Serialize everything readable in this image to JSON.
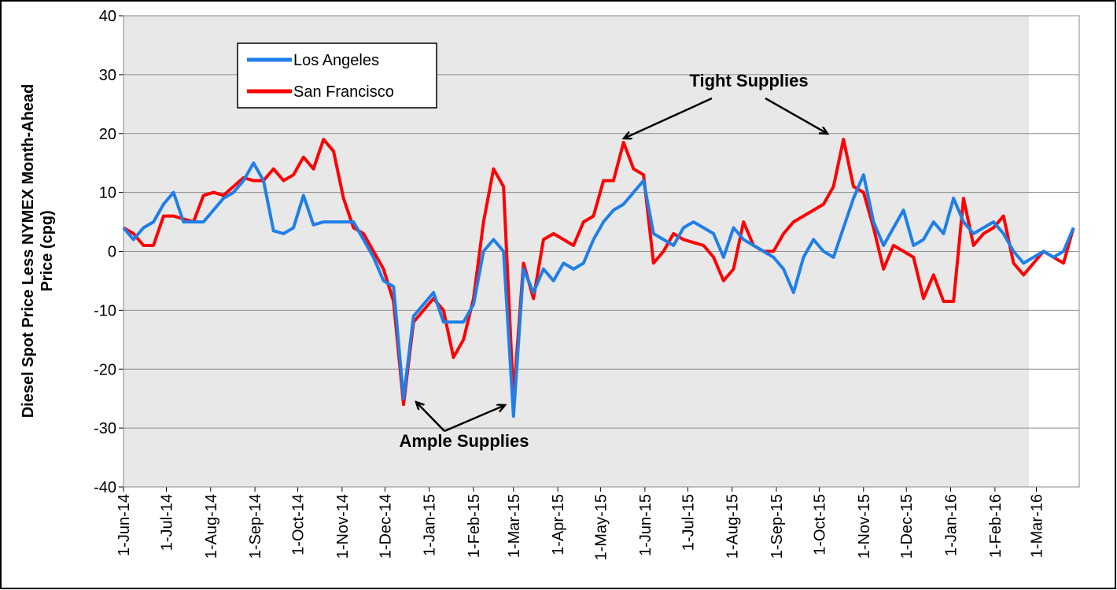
{
  "chart_data": {
    "type": "line",
    "ylabel": [
      "Diesel Spot Price Less NYMEX Month-Ahead",
      "Price (cpg)"
    ],
    "annotations": [
      "Tight Supplies",
      "Ample Supplies"
    ],
    "x": [
      "2014-06-01",
      "2014-06-08",
      "2014-06-15",
      "2014-06-22",
      "2014-06-29",
      "2014-07-06",
      "2014-07-13",
      "2014-07-20",
      "2014-07-27",
      "2014-08-03",
      "2014-08-10",
      "2014-08-17",
      "2014-08-24",
      "2014-08-31",
      "2014-09-07",
      "2014-09-14",
      "2014-09-21",
      "2014-09-28",
      "2014-10-05",
      "2014-10-12",
      "2014-10-19",
      "2014-10-26",
      "2014-11-02",
      "2014-11-09",
      "2014-11-16",
      "2014-11-23",
      "2014-11-30",
      "2014-12-07",
      "2014-12-14",
      "2014-12-21",
      "2014-12-28",
      "2015-01-04",
      "2015-01-11",
      "2015-01-18",
      "2015-01-25",
      "2015-02-01",
      "2015-02-08",
      "2015-02-15",
      "2015-02-22",
      "2015-03-01",
      "2015-03-08",
      "2015-03-15",
      "2015-03-22",
      "2015-03-29",
      "2015-04-05",
      "2015-04-12",
      "2015-04-19",
      "2015-04-26",
      "2015-05-03",
      "2015-05-10",
      "2015-05-17",
      "2015-05-24",
      "2015-05-31",
      "2015-06-07",
      "2015-06-14",
      "2015-06-21",
      "2015-06-28",
      "2015-07-05",
      "2015-07-12",
      "2015-07-19",
      "2015-07-26",
      "2015-08-02",
      "2015-08-09",
      "2015-08-16",
      "2015-08-23",
      "2015-08-30",
      "2015-09-06",
      "2015-09-13",
      "2015-09-20",
      "2015-09-27",
      "2015-10-04",
      "2015-10-11",
      "2015-10-18",
      "2015-10-25",
      "2015-11-01",
      "2015-11-08",
      "2015-11-15",
      "2015-11-22",
      "2015-11-29",
      "2015-12-06",
      "2015-12-13",
      "2015-12-20",
      "2015-12-27",
      "2016-01-03",
      "2016-01-10",
      "2016-01-17",
      "2016-01-24",
      "2016-01-31",
      "2016-02-07",
      "2016-02-14",
      "2016-02-21",
      "2016-02-28",
      "2016-03-06",
      "2016-03-13",
      "2016-03-20",
      "2016-03-27"
    ],
    "series": [
      {
        "name": "Los Angeles",
        "color": "#1f7fe8",
        "values": [
          4,
          2,
          4,
          5,
          8,
          10,
          5,
          5,
          5,
          7,
          9,
          10,
          12,
          15,
          12,
          3.5,
          3,
          4,
          9.5,
          4.5,
          5,
          5,
          5,
          5,
          2,
          -1,
          -5,
          -6,
          -25,
          -11,
          -9,
          -7,
          -12,
          -12,
          -12,
          -9,
          0,
          2,
          0,
          -28,
          -3,
          -7,
          -3,
          -5,
          -2,
          -3,
          -2,
          2,
          5,
          7,
          8,
          10,
          12,
          3,
          2,
          1,
          4,
          5,
          4,
          3,
          -1,
          4,
          2,
          1,
          0,
          -1,
          -3,
          -7,
          -1,
          2,
          0,
          -1,
          4,
          9,
          13,
          5,
          1,
          4,
          7,
          1,
          2,
          5,
          3,
          9,
          5,
          3,
          4,
          5,
          3,
          0,
          -2,
          -1,
          0,
          -1,
          0,
          4
        ]
      },
      {
        "name": "San Francisco",
        "color": "#ff0000",
        "values": [
          4,
          3,
          1,
          1,
          6,
          6,
          5.5,
          5,
          9.5,
          10,
          9.5,
          11,
          12.5,
          12,
          12,
          14,
          12,
          13,
          16,
          14,
          19,
          17,
          9,
          4,
          3,
          0,
          -3,
          -8.5,
          -26,
          -12,
          -10,
          -8,
          -10,
          -18,
          -15,
          -8,
          5,
          14,
          11,
          -25,
          -2,
          -8,
          2,
          3,
          2,
          1,
          5,
          6,
          12,
          12,
          18.5,
          14,
          13,
          -2,
          0,
          3,
          2,
          1.5,
          1,
          -1,
          -5,
          -3,
          5,
          1,
          0,
          0,
          3,
          5,
          6,
          7,
          8,
          11,
          19,
          11,
          10,
          4,
          -3,
          1,
          0,
          -1,
          -8,
          -4,
          -8.5,
          -8.5,
          9,
          1,
          3,
          4,
          6,
          -2,
          -4,
          -2,
          0,
          -1,
          -2,
          4
        ]
      }
    ],
    "xlim": [
      "2014-06-01",
      "2016-03-31"
    ],
    "xticks": [
      {
        "value": "2014-06-01",
        "label": "1-Jun-14"
      },
      {
        "value": "2014-07-01",
        "label": "1-Jul-14"
      },
      {
        "value": "2014-08-01",
        "label": "1-Aug-14"
      },
      {
        "value": "2014-09-01",
        "label": "1-Sep-14"
      },
      {
        "value": "2014-10-01",
        "label": "1-Oct-14"
      },
      {
        "value": "2014-11-01",
        "label": "1-Nov-14"
      },
      {
        "value": "2014-12-01",
        "label": "1-Dec-14"
      },
      {
        "value": "2015-01-01",
        "label": "1-Jan-15"
      },
      {
        "value": "2015-02-01",
        "label": "1-Feb-15"
      },
      {
        "value": "2015-03-01",
        "label": "1-Mar-15"
      },
      {
        "value": "2015-04-01",
        "label": "1-Apr-15"
      },
      {
        "value": "2015-05-01",
        "label": "1-May-15"
      },
      {
        "value": "2015-06-01",
        "label": "1-Jun-15"
      },
      {
        "value": "2015-07-01",
        "label": "1-Jul-15"
      },
      {
        "value": "2015-08-01",
        "label": "1-Aug-15"
      },
      {
        "value": "2015-09-01",
        "label": "1-Sep-15"
      },
      {
        "value": "2015-10-01",
        "label": "1-Oct-15"
      },
      {
        "value": "2015-11-01",
        "label": "1-Nov-15"
      },
      {
        "value": "2015-12-01",
        "label": "1-Dec-15"
      },
      {
        "value": "2016-01-01",
        "label": "1-Jan-16"
      },
      {
        "value": "2016-02-01",
        "label": "1-Feb-16"
      },
      {
        "value": "2016-03-01",
        "label": "1-Mar-16"
      }
    ],
    "ylim": [
      -40,
      40
    ],
    "yticks": [
      -40,
      -30,
      -20,
      -10,
      0,
      10,
      20,
      30,
      40
    ],
    "grid": true
  }
}
